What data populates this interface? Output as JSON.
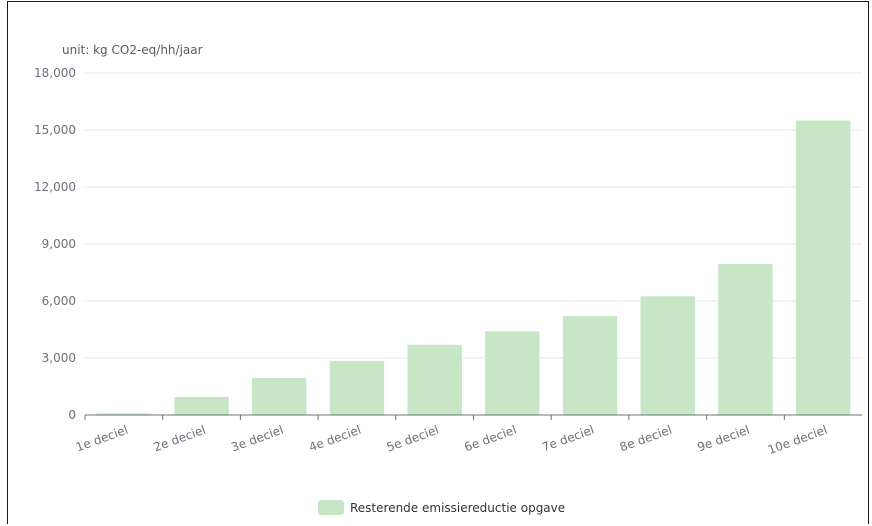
{
  "chart_data": {
    "type": "bar",
    "unit_label": "unit: kg CO2-eq/hh/jaar",
    "categories": [
      "1e deciel",
      "2e deciel",
      "3e deciel",
      "4e deciel",
      "5e deciel",
      "6e deciel",
      "7e deciel",
      "8e deciel",
      "9e deciel",
      "10e deciel"
    ],
    "series": [
      {
        "name": "Resterende emissiereductie opgave",
        "values": [
          80,
          950,
          1950,
          2850,
          3700,
          4400,
          5200,
          6250,
          7950,
          15500
        ],
        "color": "#c6e6c6"
      }
    ],
    "yticks": [
      "0",
      "3,000",
      "6,000",
      "9,000",
      "12,000",
      "15,000",
      "18,000"
    ],
    "ylim": [
      0,
      18000
    ],
    "grid": true,
    "legend_position": "bottom-center"
  }
}
